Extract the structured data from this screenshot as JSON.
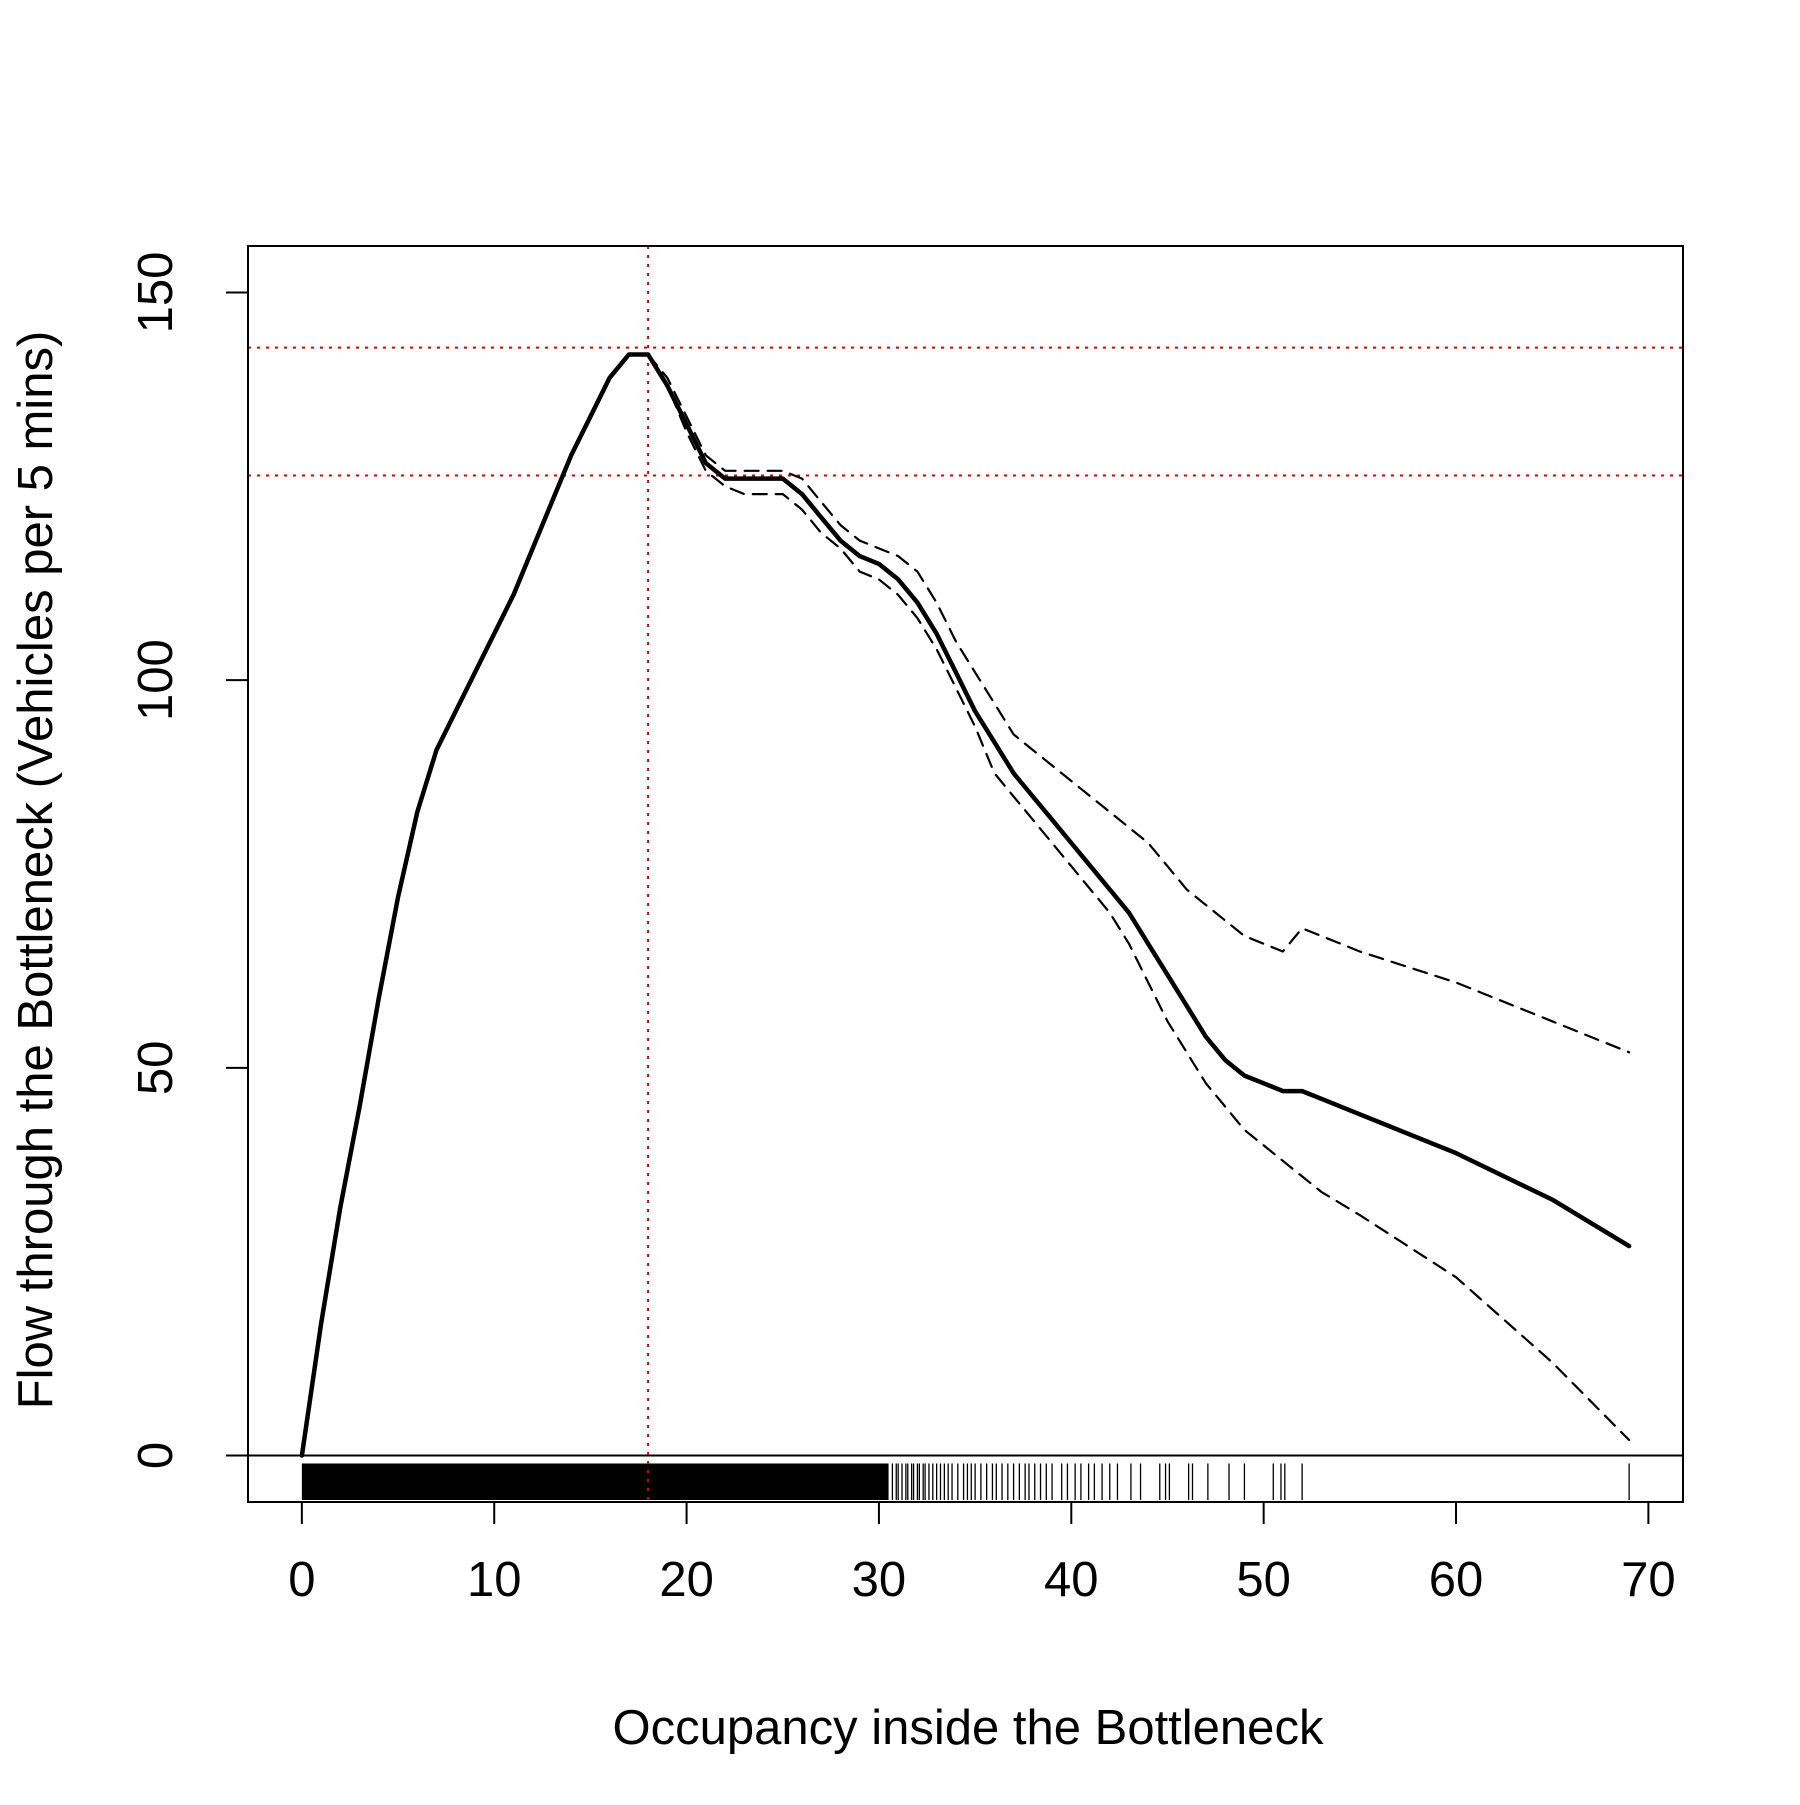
{
  "chart_data": {
    "type": "line",
    "title": "",
    "xlabel": "Occupancy inside the Bottleneck",
    "ylabel": "Flow through the Bottleneck (Vehicles per 5 mins)",
    "xlim": [
      -2.8,
      71.8
    ],
    "ylim": [
      -6,
      156
    ],
    "xticks": [
      0,
      10,
      20,
      30,
      40,
      50,
      60,
      70
    ],
    "yticks": [
      0,
      50,
      100,
      150
    ],
    "xtick_labels": [
      "0",
      "10",
      "20",
      "30",
      "40",
      "50",
      "60",
      "70"
    ],
    "ytick_labels": [
      "0",
      "50",
      "100",
      "150"
    ],
    "grid": false,
    "legend": "none",
    "series": [
      {
        "style": "solid-thick",
        "color": "#000000",
        "x": [
          0,
          1,
          2,
          3,
          4,
          5,
          6,
          7,
          8,
          9,
          10,
          11,
          12,
          13,
          14,
          15,
          16,
          17,
          18,
          19,
          20,
          21,
          22,
          23,
          24,
          25,
          26,
          27,
          28,
          29,
          30,
          31,
          32,
          33,
          34,
          35,
          36,
          37,
          38,
          39,
          40,
          41,
          42,
          43,
          44,
          45,
          46,
          47,
          48,
          49,
          50,
          51,
          52,
          53,
          55,
          60,
          65,
          69
        ],
        "y": [
          0,
          17,
          32,
          45,
          59,
          72,
          83,
          91,
          96,
          101,
          106,
          111,
          117,
          123,
          129,
          134,
          139,
          142,
          142,
          138,
          133,
          128,
          126,
          126,
          126,
          126,
          124,
          121,
          118,
          116,
          115,
          113,
          110,
          106,
          101,
          96,
          92,
          88,
          85,
          82,
          79,
          76,
          73,
          70,
          66,
          62,
          58,
          54,
          51,
          49,
          48,
          47,
          47,
          46,
          44,
          39,
          33,
          27
        ]
      },
      {
        "style": "dashed",
        "color": "#000000",
        "x": [
          18,
          19,
          20,
          21,
          22,
          23,
          24,
          25,
          26,
          27,
          28,
          29,
          30,
          31,
          32,
          33,
          34,
          35,
          36,
          37,
          38,
          39,
          40,
          41,
          42,
          43,
          44,
          45,
          46,
          47,
          48,
          49,
          50,
          51,
          52,
          53,
          55,
          60,
          65,
          69
        ],
        "y": [
          142,
          139,
          134,
          129,
          127,
          127,
          127,
          127,
          126,
          123,
          120,
          118,
          117,
          116,
          114,
          110,
          105,
          101,
          97,
          93,
          91,
          89,
          87,
          85,
          83,
          81,
          79,
          76,
          73,
          71,
          69,
          67,
          66,
          65,
          68,
          67,
          65,
          61,
          56,
          52
        ]
      },
      {
        "style": "dashed",
        "color": "#000000",
        "x": [
          18,
          19,
          20,
          21,
          22,
          23,
          24,
          25,
          26,
          27,
          28,
          29,
          30,
          31,
          32,
          33,
          34,
          35,
          36,
          37,
          38,
          39,
          40,
          41,
          42,
          43,
          44,
          45,
          46,
          47,
          48,
          49,
          50,
          51,
          52,
          53,
          55,
          60,
          65,
          69
        ],
        "y": [
          142,
          138,
          132,
          127,
          125,
          124,
          124,
          124,
          122,
          119,
          117,
          114,
          113,
          111,
          108,
          104,
          99,
          94,
          88,
          85,
          82,
          79,
          76,
          73,
          70,
          66,
          61,
          56,
          52,
          48,
          45,
          42,
          40,
          38,
          36,
          34,
          31,
          23,
          12,
          2
        ]
      }
    ],
    "reference_lines": {
      "color": "#dd0000",
      "style": "dotted",
      "vertical_x": [
        18
      ],
      "horizontal_y": [
        142.9,
        126.4
      ]
    },
    "zero_line_y": 0,
    "rug": {
      "dense_from": 0,
      "dense_to": 30.5,
      "x": [
        30.7,
        30.9,
        31.0,
        31.2,
        31.4,
        31.5,
        31.7,
        31.8,
        32.0,
        32.1,
        32.3,
        32.4,
        32.6,
        32.8,
        33.0,
        33.2,
        33.4,
        33.6,
        33.8,
        34.1,
        34.4,
        34.6,
        34.8,
        35.0,
        35.3,
        35.6,
        35.9,
        36.1,
        36.4,
        36.7,
        37.0,
        37.3,
        37.6,
        37.8,
        38.1,
        38.4,
        38.7,
        39.0,
        39.5,
        39.8,
        40.2,
        40.5,
        40.9,
        41.2,
        41.6,
        42.0,
        42.4,
        43.1,
        43.6,
        44.6,
        44.9,
        45.1,
        46.1,
        46.3,
        47.1,
        48.2,
        49.0,
        50.5,
        50.9,
        51.1,
        52.0,
        69.0
      ]
    }
  }
}
